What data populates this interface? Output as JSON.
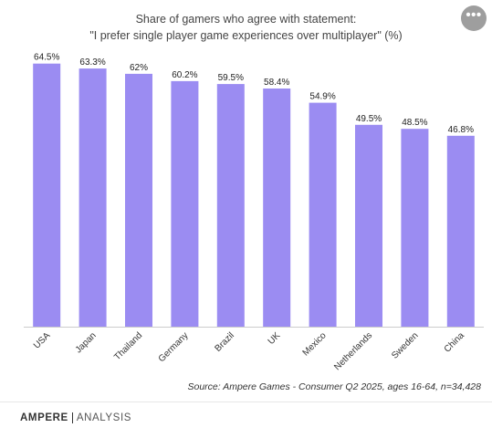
{
  "header": {
    "title_line1": "Share of gamers who agree with statement:",
    "title_line2": "\"I prefer single player game experiences over multiplayer\" (%)",
    "more_label": "•••"
  },
  "chart_data": {
    "type": "bar",
    "categories": [
      "USA",
      "Japan",
      "Thailand",
      "Germany",
      "Brazil",
      "UK",
      "Mexico",
      "Netherlands",
      "Sweden",
      "China"
    ],
    "values": [
      64.5,
      63.3,
      62,
      60.2,
      59.5,
      58.4,
      54.9,
      49.5,
      48.5,
      46.8
    ],
    "value_labels": [
      "64.5%",
      "63.3%",
      "62%",
      "60.2%",
      "59.5%",
      "58.4%",
      "54.9%",
      "49.5%",
      "48.5%",
      "46.8%"
    ],
    "ylim": [
      0,
      66
    ],
    "grid": false,
    "legend": "none",
    "bar_color": "#9b8cf2"
  },
  "footer": {
    "source": "Source: Ampere Games - Consumer Q2 2025, ages 16-64, n=34,428",
    "logo_left": "AMPERE",
    "logo_right": "ANALYSIS"
  }
}
